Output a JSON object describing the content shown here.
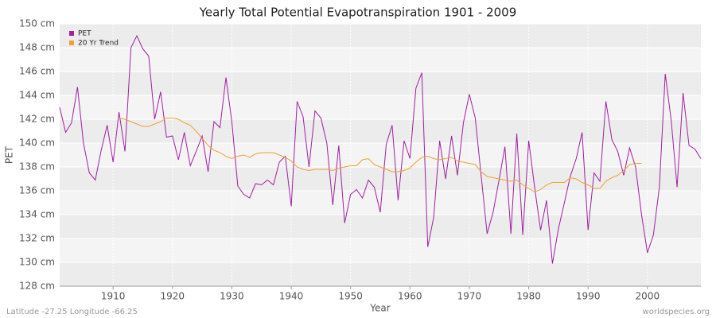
{
  "chart_data": {
    "type": "line",
    "title": "Yearly Total Potential Evapotranspiration 1901 - 2009",
    "x_label": "Year",
    "y_label": "PET",
    "footer_left": "Latitude -27.25 Longitude -66.25",
    "footer_right": "worldspecies.org",
    "x": [
      1901,
      1902,
      1903,
      1904,
      1905,
      1906,
      1907,
      1908,
      1909,
      1910,
      1911,
      1912,
      1913,
      1914,
      1915,
      1916,
      1917,
      1918,
      1919,
      1920,
      1921,
      1922,
      1923,
      1924,
      1925,
      1926,
      1927,
      1928,
      1929,
      1930,
      1931,
      1932,
      1933,
      1934,
      1935,
      1936,
      1937,
      1938,
      1939,
      1940,
      1941,
      1942,
      1943,
      1944,
      1945,
      1946,
      1947,
      1948,
      1949,
      1950,
      1951,
      1952,
      1953,
      1954,
      1955,
      1956,
      1957,
      1958,
      1959,
      1960,
      1961,
      1962,
      1963,
      1964,
      1965,
      1966,
      1967,
      1968,
      1969,
      1970,
      1971,
      1972,
      1973,
      1974,
      1975,
      1976,
      1977,
      1978,
      1979,
      1980,
      1981,
      1982,
      1983,
      1984,
      1985,
      1986,
      1987,
      1988,
      1989,
      1990,
      1991,
      1992,
      1993,
      1994,
      1995,
      1996,
      1997,
      1998,
      1999,
      2000,
      2001,
      2002,
      2003,
      2004,
      2005,
      2006,
      2007,
      2008,
      2009
    ],
    "series": [
      {
        "name": "PET",
        "color": "#a020a0",
        "values": [
          143.0,
          140.9,
          141.7,
          144.7,
          140.0,
          137.5,
          136.9,
          139.4,
          141.5,
          138.4,
          142.6,
          139.3,
          148.0,
          149.0,
          147.9,
          147.3,
          142.0,
          144.3,
          140.5,
          140.6,
          138.6,
          140.9,
          138.1,
          139.3,
          140.6,
          137.6,
          141.8,
          141.3,
          145.5,
          141.8,
          136.4,
          135.7,
          135.4,
          136.6,
          136.5,
          136.9,
          136.5,
          138.4,
          138.9,
          134.7,
          143.5,
          142.2,
          138.0,
          142.7,
          142.1,
          140.0,
          134.8,
          139.8,
          133.3,
          135.7,
          136.1,
          135.4,
          136.9,
          136.3,
          134.2,
          139.9,
          141.5,
          135.2,
          140.2,
          138.7,
          144.6,
          145.9,
          131.3,
          133.8,
          140.2,
          137.0,
          140.6,
          137.3,
          141.7,
          144.1,
          142.1,
          137.2,
          132.4,
          134.2,
          136.9,
          139.7,
          132.4,
          140.8,
          132.3,
          140.2,
          136.3,
          132.7,
          135.2,
          129.9,
          132.8,
          135.0,
          137.2,
          138.7,
          140.9,
          132.7,
          137.5,
          136.8,
          143.5,
          140.3,
          139.3,
          137.3,
          139.6,
          138.0,
          134.0,
          130.8,
          132.3,
          136.3,
          145.8,
          141.9,
          136.3,
          144.2,
          139.8,
          139.5,
          138.7
        ]
      },
      {
        "name": "20 Yr Trend",
        "color": "#f0a030",
        "values": [
          null,
          null,
          null,
          null,
          null,
          null,
          null,
          null,
          null,
          null,
          142.1,
          142.0,
          141.8,
          141.6,
          141.4,
          141.4,
          141.6,
          141.8,
          142.1,
          142.1,
          142.0,
          141.7,
          141.5,
          141.0,
          140.4,
          139.8,
          139.4,
          139.2,
          138.9,
          138.7,
          138.9,
          139.0,
          138.8,
          139.1,
          139.2,
          139.2,
          139.2,
          139.0,
          138.8,
          138.5,
          138.0,
          137.8,
          137.7,
          137.8,
          137.8,
          137.8,
          137.7,
          137.9,
          138.0,
          138.1,
          138.1,
          138.6,
          138.7,
          138.2,
          138.0,
          137.8,
          137.6,
          137.6,
          137.7,
          137.9,
          138.4,
          138.8,
          138.9,
          138.7,
          138.6,
          138.7,
          138.8,
          138.5,
          138.4,
          138.3,
          138.2,
          137.6,
          137.2,
          137.1,
          137.0,
          136.9,
          136.8,
          136.9,
          136.5,
          136.2,
          135.9,
          136.1,
          136.5,
          136.7,
          136.7,
          136.7,
          137.1,
          137.0,
          136.7,
          136.5,
          136.2,
          136.2,
          136.8,
          137.1,
          137.3,
          137.7,
          138.2,
          138.3,
          138.3,
          null,
          null,
          null,
          null,
          null,
          null,
          null,
          null,
          null,
          null
        ]
      }
    ],
    "xlim": [
      1901,
      2009
    ],
    "xticks": [
      1910,
      1920,
      1930,
      1940,
      1950,
      1960,
      1970,
      1980,
      1990,
      2000
    ],
    "ylim": [
      128,
      150
    ],
    "yticks": [
      {
        "value": 128,
        "label": "128 cm"
      },
      {
        "value": 130,
        "label": "130 cm"
      },
      {
        "value": 132,
        "label": "132 cm"
      },
      {
        "value": 134,
        "label": "134 cm"
      },
      {
        "value": 136,
        "label": "136 cm"
      },
      {
        "value": 138,
        "label": "138 cm"
      },
      {
        "value": 140,
        "label": "140 cm"
      },
      {
        "value": 142,
        "label": "142 cm"
      },
      {
        "value": 144,
        "label": "144 cm"
      },
      {
        "value": 146,
        "label": "146 cm"
      },
      {
        "value": 148,
        "label": "148 cm"
      },
      {
        "value": 150,
        "label": "150 cm"
      }
    ],
    "grid": true,
    "legend": "top-left"
  }
}
